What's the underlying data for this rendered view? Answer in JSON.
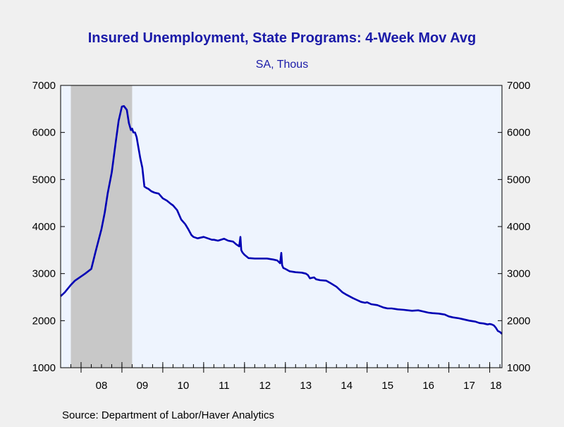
{
  "colors": {
    "background": "#f0f0f0",
    "plot_background": "#eef4fe",
    "recession_shade": "#c8c8c8",
    "line": "#0000b4",
    "title": "#1a1aa8",
    "axis": "#000000"
  },
  "footer": {
    "source": "Source:  Department of Labor/Haver Analytics"
  },
  "chart_data": {
    "type": "line",
    "title": "Insured Unemployment, State Programs: 4-Week Mov Avg",
    "subtitle": "SA, Thous",
    "xlabel": "",
    "ylabel": "",
    "xlim": [
      2007.5,
      2018.3
    ],
    "ylim": [
      1000,
      7000
    ],
    "y_ticks": [
      1000,
      2000,
      3000,
      4000,
      5000,
      6000,
      7000
    ],
    "y_tick_labels": [
      "1000",
      "2000",
      "3000",
      "4000",
      "5000",
      "6000",
      "7000"
    ],
    "x_tick_labels": [
      "08",
      "09",
      "10",
      "11",
      "12",
      "13",
      "14",
      "15",
      "16",
      "17",
      "18"
    ],
    "x_label_centers": [
      2008.5,
      2009.5,
      2010.5,
      2011.5,
      2012.5,
      2013.5,
      2014.5,
      2015.5,
      2016.5,
      2017.5,
      2018.15
    ],
    "x_ticks": [
      2007.75,
      2008.0,
      2008.25,
      2008.5,
      2008.75,
      2009.0,
      2009.25,
      2009.5,
      2009.75,
      2010.0,
      2010.25,
      2010.5,
      2010.75,
      2011.0,
      2011.25,
      2011.5,
      2011.75,
      2012.0,
      2012.25,
      2012.5,
      2012.75,
      2013.0,
      2013.25,
      2013.5,
      2013.75,
      2014.0,
      2014.25,
      2014.5,
      2014.75,
      2015.0,
      2015.25,
      2015.5,
      2015.75,
      2016.0,
      2016.25,
      2016.5,
      2016.75,
      2017.0,
      2017.25,
      2017.5,
      2017.75,
      2018.0,
      2018.25
    ],
    "year_boundaries": [
      2008,
      2009,
      2010,
      2011,
      2012,
      2013,
      2014,
      2015,
      2016,
      2017,
      2018
    ],
    "recession": {
      "start": 2007.75,
      "end": 2009.25
    },
    "dual_y_axis": true,
    "grid": false,
    "legend": "none",
    "series": [
      {
        "x": [
          2007.5,
          2007.6,
          2007.75,
          2007.85,
          2008.0,
          2008.1,
          2008.25,
          2008.35,
          2008.5,
          2008.58,
          2008.65,
          2008.75,
          2008.85,
          2008.92,
          2009.0,
          2009.05,
          2009.12,
          2009.17,
          2009.22,
          2009.25,
          2009.28,
          2009.32,
          2009.36,
          2009.4,
          2009.45,
          2009.5,
          2009.55,
          2009.6,
          2009.65,
          2009.72,
          2009.8,
          2009.9,
          2010.0,
          2010.1,
          2010.2,
          2010.25,
          2010.35,
          2010.45,
          2010.55,
          2010.62,
          2010.7,
          2010.75,
          2010.85,
          2011.0,
          2011.1,
          2011.2,
          2011.25,
          2011.35,
          2011.5,
          2011.6,
          2011.72,
          2011.8,
          2011.87,
          2011.9,
          2011.92,
          2011.95,
          2012.0,
          2012.1,
          2012.25,
          2012.4,
          2012.55,
          2012.7,
          2012.8,
          2012.87,
          2012.9,
          2012.92,
          2012.95,
          2013.0,
          2013.1,
          2013.25,
          2013.4,
          2013.5,
          2013.55,
          2013.6,
          2013.7,
          2013.75,
          2013.85,
          2014.0,
          2014.1,
          2014.25,
          2014.4,
          2014.5,
          2014.65,
          2014.75,
          2014.85,
          2014.95,
          2015.0,
          2015.1,
          2015.25,
          2015.4,
          2015.5,
          2015.6,
          2015.75,
          2015.9,
          2016.0,
          2016.1,
          2016.25,
          2016.35,
          2016.5,
          2016.6,
          2016.75,
          2016.9,
          2017.0,
          2017.1,
          2017.25,
          2017.35,
          2017.5,
          2017.65,
          2017.75,
          2017.85,
          2017.95,
          2018.0,
          2018.05,
          2018.1,
          2018.15,
          2018.2,
          2018.25,
          2018.3
        ],
        "values": [
          2520,
          2600,
          2760,
          2850,
          2940,
          3000,
          3100,
          3450,
          3950,
          4300,
          4700,
          5150,
          5800,
          6250,
          6550,
          6560,
          6480,
          6200,
          6050,
          6080,
          6000,
          6000,
          5900,
          5700,
          5450,
          5250,
          4850,
          4820,
          4800,
          4750,
          4720,
          4700,
          4600,
          4550,
          4480,
          4450,
          4350,
          4150,
          4050,
          3950,
          3820,
          3780,
          3750,
          3780,
          3750,
          3720,
          3720,
          3700,
          3740,
          3700,
          3680,
          3620,
          3580,
          3780,
          3500,
          3450,
          3400,
          3330,
          3320,
          3320,
          3320,
          3300,
          3280,
          3220,
          3440,
          3180,
          3120,
          3100,
          3050,
          3030,
          3020,
          3000,
          2970,
          2900,
          2920,
          2880,
          2860,
          2850,
          2800,
          2720,
          2600,
          2550,
          2480,
          2440,
          2400,
          2380,
          2390,
          2350,
          2330,
          2280,
          2260,
          2260,
          2240,
          2230,
          2220,
          2210,
          2220,
          2200,
          2170,
          2160,
          2150,
          2130,
          2090,
          2070,
          2050,
          2030,
          2000,
          1980,
          1950,
          1940,
          1920,
          1930,
          1920,
          1900,
          1850,
          1780,
          1760,
          1720
        ]
      }
    ]
  }
}
